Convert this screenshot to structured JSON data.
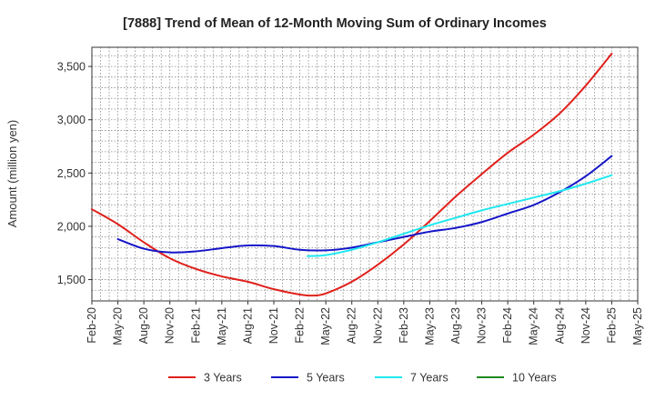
{
  "chart_data": {
    "type": "line",
    "title": "[7888]  Trend of Mean of 12-Month Moving Sum of Ordinary Incomes",
    "xlabel": "",
    "ylabel": "Amount (million yen)",
    "x_ticks": [
      "Feb-20",
      "May-20",
      "Aug-20",
      "Nov-20",
      "Feb-21",
      "May-21",
      "Aug-21",
      "Nov-21",
      "Feb-22",
      "May-22",
      "Aug-22",
      "Nov-22",
      "Feb-23",
      "May-23",
      "Aug-23",
      "Nov-23",
      "Feb-24",
      "May-24",
      "Aug-24",
      "Nov-24",
      "Feb-25",
      "May-25"
    ],
    "y_ticks": [
      1500,
      2000,
      2500,
      3000,
      3500
    ],
    "y_tick_labels": [
      "1,500",
      "2,000",
      "2,500",
      "3,000",
      "3,500"
    ],
    "ylim": [
      1300,
      3680
    ],
    "grid": true,
    "legend_position": "bottom",
    "series": [
      {
        "name": "3 Years",
        "color": "#e0201b",
        "points": [
          [
            0,
            2160
          ],
          [
            1,
            2020
          ],
          [
            2,
            1850
          ],
          [
            3,
            1700
          ],
          [
            4,
            1600
          ],
          [
            5,
            1530
          ],
          [
            6,
            1480
          ],
          [
            7,
            1410
          ],
          [
            8,
            1360
          ],
          [
            8.5,
            1350
          ],
          [
            9,
            1370
          ],
          [
            10,
            1480
          ],
          [
            11,
            1640
          ],
          [
            12,
            1830
          ],
          [
            13,
            2050
          ],
          [
            14,
            2280
          ],
          [
            15,
            2490
          ],
          [
            16,
            2690
          ],
          [
            17,
            2860
          ],
          [
            18,
            3060
          ],
          [
            19,
            3320
          ],
          [
            20,
            3620
          ]
        ]
      },
      {
        "name": "5 Years",
        "color": "#1515c8",
        "points": [
          [
            1,
            1880
          ],
          [
            2,
            1790
          ],
          [
            3,
            1755
          ],
          [
            4,
            1765
          ],
          [
            5,
            1795
          ],
          [
            6,
            1820
          ],
          [
            7,
            1815
          ],
          [
            8,
            1780
          ],
          [
            9,
            1775
          ],
          [
            10,
            1800
          ],
          [
            11,
            1850
          ],
          [
            12,
            1900
          ],
          [
            13,
            1950
          ],
          [
            14,
            1985
          ],
          [
            15,
            2040
          ],
          [
            16,
            2120
          ],
          [
            17,
            2200
          ],
          [
            18,
            2320
          ],
          [
            19,
            2470
          ],
          [
            20,
            2660
          ]
        ]
      },
      {
        "name": "7 Years",
        "color": "#1ee8f0",
        "points": [
          [
            8.3,
            1720
          ],
          [
            9,
            1730
          ],
          [
            10,
            1780
          ],
          [
            11,
            1850
          ],
          [
            12,
            1930
          ],
          [
            13,
            2010
          ],
          [
            14,
            2080
          ],
          [
            15,
            2150
          ],
          [
            16,
            2210
          ],
          [
            17,
            2270
          ],
          [
            18,
            2330
          ],
          [
            19,
            2400
          ],
          [
            20,
            2480
          ]
        ]
      },
      {
        "name": "10 Years",
        "color": "#1e8a1e",
        "points": []
      }
    ]
  }
}
